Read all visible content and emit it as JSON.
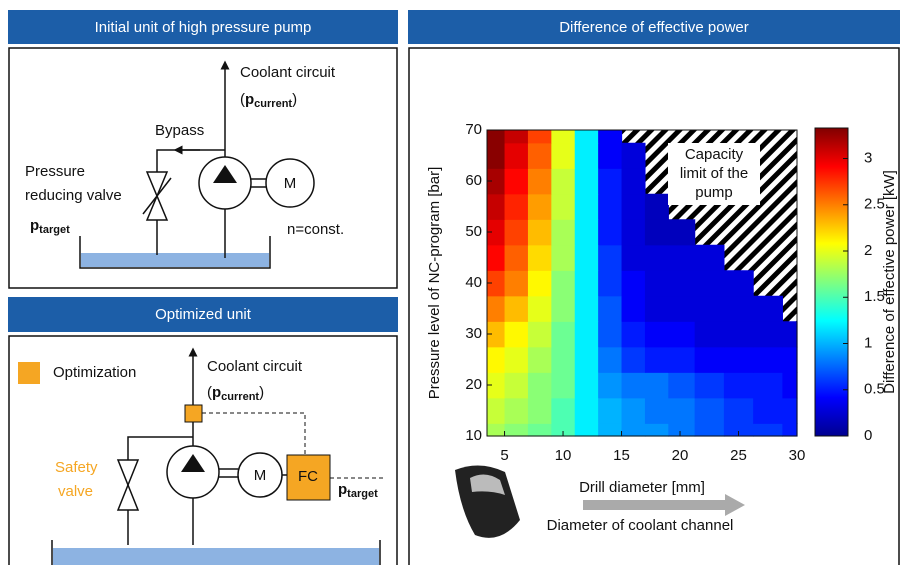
{
  "panels": {
    "initial": {
      "title": "Initial unit of high pressure pump",
      "coolant": "Coolant circuit",
      "open": "(",
      "p": "p",
      "current": "current",
      "close": ")",
      "bypass": "Bypass",
      "valve_1": "Pressure",
      "valve_2": "reducing valve",
      "target": "target",
      "motor": "M",
      "speed": "n=const."
    },
    "optimized": {
      "title": "Optimized unit",
      "legend": "Optimization",
      "coolant": "Coolant circuit",
      "open": "(",
      "p": "p",
      "current": "current",
      "close": ")",
      "valve_1": "Safety",
      "valve_2": "valve",
      "motor": "M",
      "controller": "FC",
      "target": "target"
    }
  },
  "chart_data": {
    "type": "heatmap",
    "title": "Difference of effective power",
    "x_label": "Drill diameter [mm]",
    "y_label": "Pressure level of NC-program [bar]",
    "colorbar_label": "Difference of effective power [kW]",
    "annotation": [
      "Capacity",
      "limit of the",
      "pump"
    ],
    "x_note": "Diameter of coolant channel",
    "xlim": [
      3.5,
      30
    ],
    "ylim": [
      10,
      70
    ],
    "clim": [
      0,
      3.33
    ],
    "xticks": [
      5,
      10,
      15,
      20,
      25,
      30
    ],
    "yticks": [
      10,
      20,
      30,
      40,
      50,
      60,
      70
    ],
    "cticks": [
      0,
      0.5,
      1,
      1.5,
      2,
      2.5,
      3
    ],
    "colormap": "jet",
    "x": [
      4,
      6,
      8,
      10,
      12,
      14,
      16,
      18,
      20,
      22.5,
      25,
      27.5,
      30
    ],
    "y": [
      10,
      15,
      20,
      25,
      30,
      35,
      40,
      45,
      50,
      55,
      60,
      65,
      70
    ],
    "z": [
      [
        1.8,
        1.7,
        1.6,
        1.5,
        1.2,
        1.0,
        0.9,
        0.9,
        0.8,
        0.7,
        0.6,
        0.6,
        0.5
      ],
      [
        1.9,
        1.8,
        1.7,
        1.5,
        1.2,
        1.0,
        0.9,
        0.8,
        0.8,
        0.7,
        0.6,
        0.5,
        0.5
      ],
      [
        2.0,
        1.9,
        1.7,
        1.6,
        1.2,
        0.9,
        0.8,
        0.8,
        0.7,
        0.6,
        0.5,
        0.5,
        0.4
      ],
      [
        2.1,
        2.0,
        1.8,
        1.6,
        1.2,
        0.8,
        0.6,
        0.5,
        0.5,
        0.4,
        0.4,
        0.4,
        0.4
      ],
      [
        2.3,
        2.1,
        1.9,
        1.6,
        1.2,
        0.7,
        0.5,
        0.4,
        0.4,
        0.3,
        0.3,
        0.3,
        0.3
      ],
      [
        2.5,
        2.3,
        2.0,
        1.7,
        1.2,
        0.7,
        0.4,
        0.3,
        0.3,
        0.3,
        0.3,
        0.3,
        null
      ],
      [
        2.7,
        2.5,
        2.1,
        1.7,
        1.2,
        0.6,
        0.4,
        0.3,
        0.3,
        0.3,
        0.3,
        null,
        null
      ],
      [
        2.9,
        2.6,
        2.2,
        1.8,
        1.2,
        0.6,
        0.3,
        0.3,
        0.3,
        0.3,
        null,
        null,
        null
      ],
      [
        3.0,
        2.7,
        2.3,
        1.8,
        1.2,
        0.5,
        0.3,
        0.2,
        0.2,
        null,
        null,
        null,
        null
      ],
      [
        3.1,
        2.8,
        2.4,
        1.9,
        1.2,
        0.5,
        0.3,
        0.2,
        null,
        null,
        null,
        null,
        null
      ],
      [
        3.2,
        2.9,
        2.5,
        1.9,
        1.2,
        0.5,
        0.3,
        null,
        null,
        null,
        null,
        null,
        null
      ],
      [
        3.3,
        3.0,
        2.6,
        2.0,
        1.2,
        0.4,
        0.3,
        null,
        null,
        null,
        null,
        null,
        null
      ],
      [
        3.3,
        3.1,
        2.7,
        2.0,
        1.2,
        0.4,
        null,
        null,
        null,
        null,
        null,
        null,
        null
      ]
    ]
  }
}
